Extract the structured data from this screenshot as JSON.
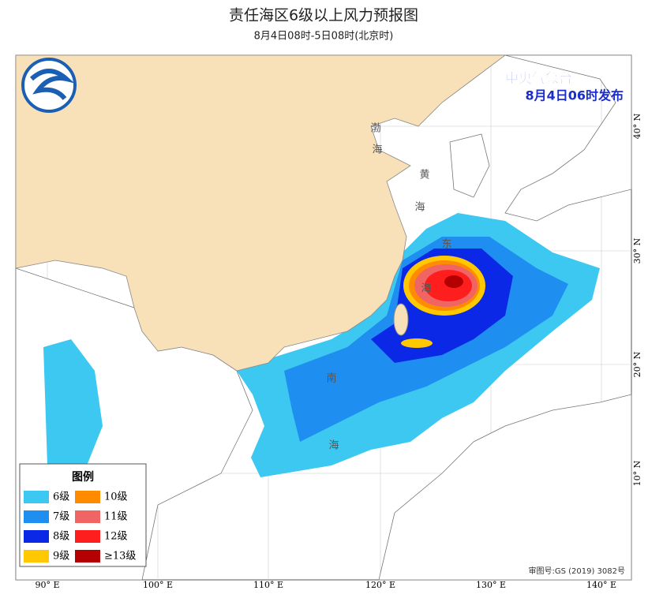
{
  "header": {
    "title": "责任海区6级以上风力预报图",
    "subtitle": "8月4日08时-5日08时(北京时)"
  },
  "issuer": {
    "name": "中央气象台",
    "time": "8月4日06时发布"
  },
  "legend": {
    "title": "图例",
    "items": [
      {
        "label": "6级",
        "color": "#3cc8f0"
      },
      {
        "label": "10级",
        "color": "#ff8c00"
      },
      {
        "label": "7级",
        "color": "#1e8ef0"
      },
      {
        "label": "11级",
        "color": "#f06464"
      },
      {
        "label": "8级",
        "color": "#0a28e6"
      },
      {
        "label": "12级",
        "color": "#ff1e1e"
      },
      {
        "label": "9级",
        "color": "#ffc800"
      },
      {
        "label": "≥13级",
        "color": "#b40000"
      }
    ]
  },
  "axes": {
    "longitude": [
      "90° E",
      "100° E",
      "110° E",
      "120° E",
      "130° E",
      "140° E"
    ],
    "latitude": [
      "40° N",
      "30° N",
      "20° N",
      "10° N"
    ]
  },
  "sea_labels": [
    "渤",
    "海",
    "黄",
    "海",
    "东",
    "海",
    "南",
    "海"
  ],
  "footer": {
    "approval": "审图号:GS (2019) 3082号"
  }
}
